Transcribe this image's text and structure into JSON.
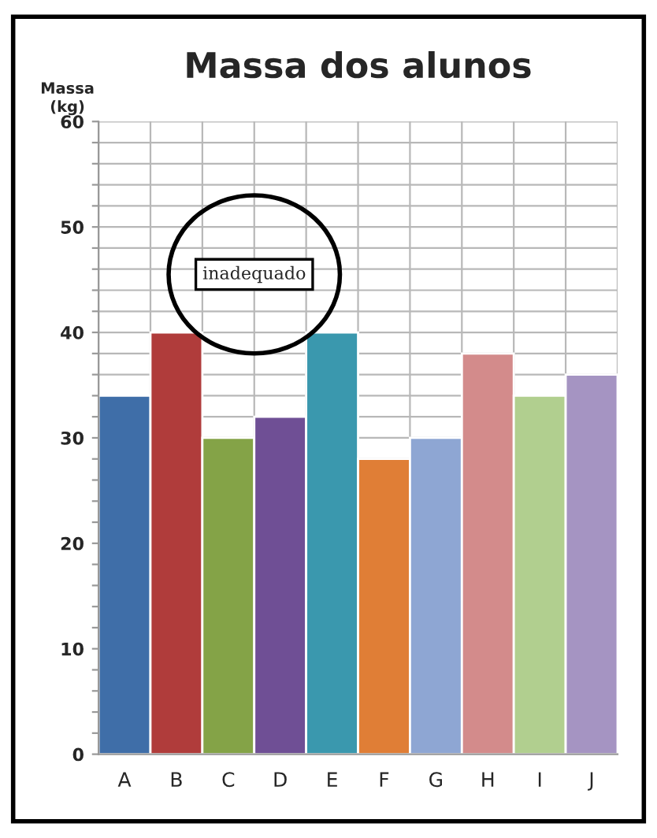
{
  "chart_data": {
    "type": "bar",
    "title": "Massa dos alunos",
    "ylabel": "Massa\n(kg)",
    "categories": [
      "A",
      "B",
      "C",
      "D",
      "E",
      "F",
      "G",
      "H",
      "I",
      "J"
    ],
    "values": [
      34,
      40,
      30,
      32,
      40,
      28,
      30,
      38,
      34,
      36
    ],
    "colors": [
      "#3f6ea8",
      "#b03c3b",
      "#84a347",
      "#6f4f95",
      "#3a98ae",
      "#e07e36",
      "#8ea6d3",
      "#d38b8b",
      "#b1cf8f",
      "#a594c2"
    ],
    "ylim": [
      0,
      60
    ],
    "yticks": [
      0,
      {
        "value": 2,
        "label": null
      },
      {
        "value": 4,
        "label": null
      },
      {
        "value": 6,
        "label": null
      },
      {
        "value": 8,
        "label": null
      },
      10,
      {
        "value": 12,
        "label": null
      },
      {
        "value": 14,
        "label": null
      },
      {
        "value": 16,
        "label": null
      },
      {
        "value": 18,
        "label": null
      },
      20,
      {
        "value": 22,
        "label": null
      },
      {
        "value": 24,
        "label": null
      },
      {
        "value": 26,
        "label": null
      },
      {
        "value": 28,
        "label": null
      },
      30,
      {
        "value": 32,
        "label": null
      },
      {
        "value": 34,
        "label": null
      },
      {
        "value": 36,
        "label": null
      },
      {
        "value": 38,
        "label": null
      },
      40,
      {
        "value": 42,
        "label": null
      },
      {
        "value": 44,
        "label": null
      },
      {
        "value": 46,
        "label": null
      },
      {
        "value": 48,
        "label": null
      },
      50,
      {
        "value": 52,
        "label": null
      },
      {
        "value": 54,
        "label": null
      },
      {
        "value": 56,
        "label": null
      },
      {
        "value": 58,
        "label": null
      },
      60
    ],
    "grid": true,
    "annotations": [
      "inadequado"
    ]
  }
}
